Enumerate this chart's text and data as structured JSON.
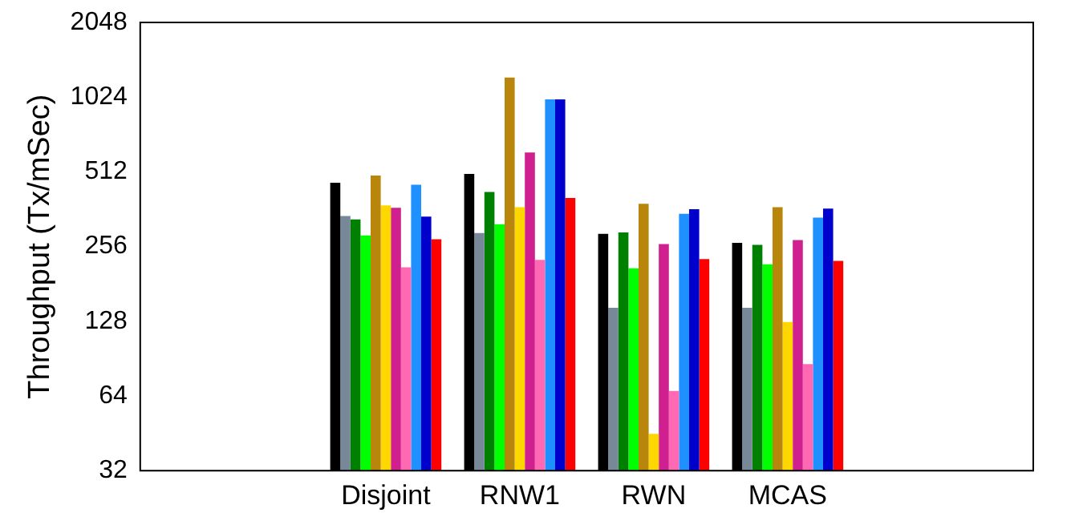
{
  "chart_data": {
    "type": "bar",
    "ylabel": "Throughput (Tx/mSec)",
    "categories": [
      "Disjoint",
      "RNW1",
      "RWN",
      "MCAS"
    ],
    "log": "y",
    "ylim": [
      32,
      2048
    ],
    "yticks": [
      32,
      64,
      128,
      256,
      512,
      1024,
      2048
    ],
    "grid": false,
    "legend": false,
    "series": [
      {
        "color": "#000000",
        "values": [
          463,
          502,
          288,
          265
        ]
      },
      {
        "color": "#778899",
        "values": [
          340,
          290,
          145,
          145
        ]
      },
      {
        "color": "#008000",
        "values": [
          329,
          425,
          292,
          260
        ]
      },
      {
        "color": "#00ff00",
        "values": [
          284,
          315,
          209,
          217
        ]
      },
      {
        "color": "#b8860b",
        "values": [
          495,
          1228,
          381,
          369
        ]
      },
      {
        "color": "#ffd700",
        "values": [
          375,
          369,
          45,
          127
        ]
      },
      {
        "color": "#d02090",
        "values": [
          367,
          613,
          262,
          272
        ]
      },
      {
        "color": "#ff69b4",
        "values": [
          211,
          226,
          67,
          86
        ]
      },
      {
        "color": "#1e90ff",
        "values": [
          454,
          1003,
          347,
          335
        ]
      },
      {
        "color": "#0000cd",
        "values": [
          338,
          1003,
          362,
          364
        ]
      },
      {
        "color": "#ff0000",
        "values": [
          274,
          402,
          228,
          224
        ]
      }
    ]
  }
}
